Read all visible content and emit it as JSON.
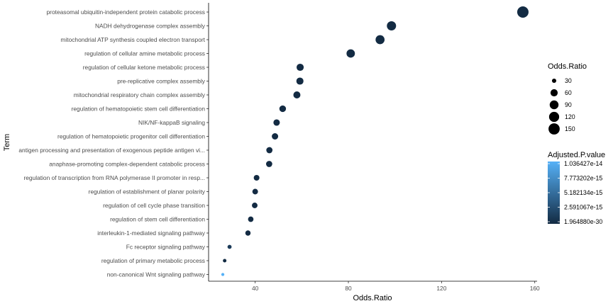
{
  "chart_data": {
    "type": "scatter",
    "xlabel": "Odds.Ratio",
    "ylabel": "Term",
    "xlim": [
      20,
      161
    ],
    "xticks": [
      40,
      80,
      120,
      160
    ],
    "grid": false,
    "legend_placement": "right",
    "size_legend": {
      "title": "Odds.Ratio",
      "values": [
        30,
        60,
        90,
        120,
        150
      ]
    },
    "color_legend": {
      "title": "Adjusted.P.value",
      "labels": [
        "1.036427e-14",
        "7.773202e-15",
        "5.182134e-15",
        "2.591067e-15",
        "1.964880e-30"
      ],
      "low_color": "#132B43",
      "high_color": "#56B1F7"
    },
    "points": [
      {
        "term": "proteasomal ubiquitin-independent protein catabolic process",
        "odds_ratio": 154.9,
        "color": "#132B43"
      },
      {
        "term": "NADH dehydrogenase complex assembly",
        "odds_ratio": 98.5,
        "color": "#132B43"
      },
      {
        "term": "mitochondrial ATP synthesis coupled electron transport",
        "odds_ratio": 93.6,
        "color": "#132B43"
      },
      {
        "term": "regulation of cellular amine metabolic process",
        "odds_ratio": 81.0,
        "color": "#132B43"
      },
      {
        "term": "regulation of cellular ketone metabolic process",
        "odds_ratio": 59.3,
        "color": "#132B43"
      },
      {
        "term": "pre-replicative complex assembly",
        "odds_ratio": 59.2,
        "color": "#132B43"
      },
      {
        "term": "mitochondrial respiratory chain complex assembly",
        "odds_ratio": 57.9,
        "color": "#132B43"
      },
      {
        "term": "regulation of hematopoietic stem cell differentiation",
        "odds_ratio": 51.8,
        "color": "#132B43"
      },
      {
        "term": "NIK/NF-kappaB signaling",
        "odds_ratio": 49.2,
        "color": "#132B43"
      },
      {
        "term": "regulation of hematopoietic progenitor cell differentiation",
        "odds_ratio": 48.5,
        "color": "#132B43"
      },
      {
        "term": "antigen processing and presentation of exogenous peptide antigen vi...",
        "odds_ratio": 46.1,
        "color": "#132B43"
      },
      {
        "term": "anaphase-promoting complex-dependent catabolic process",
        "odds_ratio": 46.0,
        "color": "#132B43"
      },
      {
        "term": "regulation of transcription from RNA polymerase II promoter in resp...",
        "odds_ratio": 40.6,
        "color": "#132B43"
      },
      {
        "term": "regulation of establishment of planar polarity",
        "odds_ratio": 40.0,
        "color": "#132B43"
      },
      {
        "term": "regulation of cell cycle phase transition",
        "odds_ratio": 39.8,
        "color": "#132B43"
      },
      {
        "term": "regulation of stem cell differentiation",
        "odds_ratio": 38.1,
        "color": "#132B43"
      },
      {
        "term": "interleukin-1-mediated signaling pathway",
        "odds_ratio": 36.9,
        "color": "#132B43"
      },
      {
        "term": "Fc receptor signaling pathway",
        "odds_ratio": 29.0,
        "color": "#1C3B59"
      },
      {
        "term": "regulation of primary metabolic process",
        "odds_ratio": 26.9,
        "color": "#132B43"
      },
      {
        "term": "non-canonical Wnt signaling pathway",
        "odds_ratio": 26.1,
        "color": "#56B1F7"
      }
    ]
  }
}
